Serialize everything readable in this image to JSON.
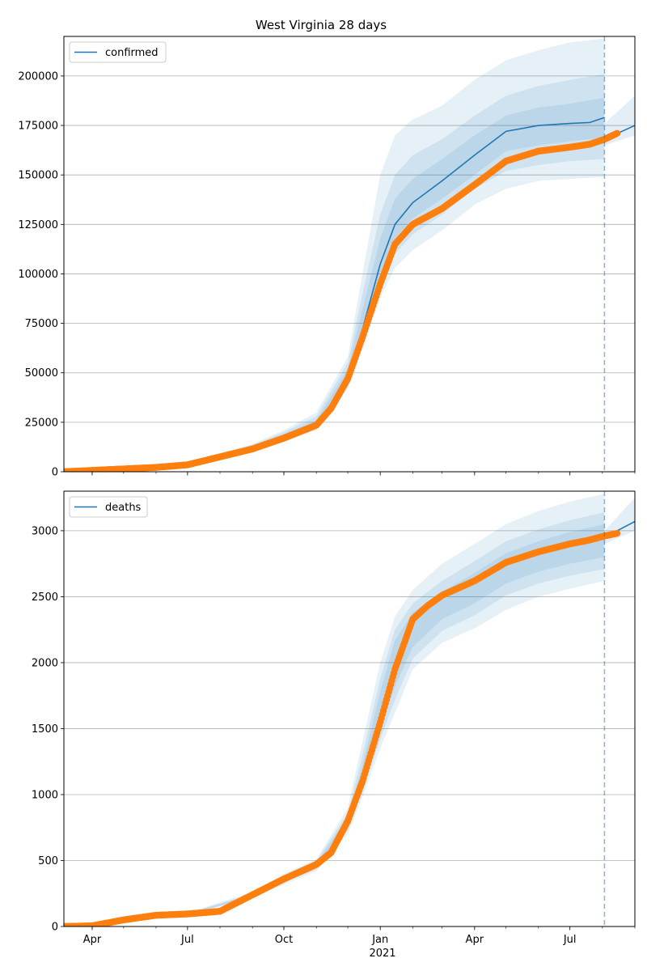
{
  "title": "West Virginia 28 days",
  "colors": {
    "model_line": "#1f77b4",
    "observed": "#ff7f0e",
    "band": "#1f77b4",
    "grid": "#b0b0b0",
    "vline": "#1f77b4"
  },
  "x_axis": {
    "tick_labels": [
      "Apr",
      "Jul",
      "Oct",
      "Jan",
      "Apr",
      "Jul"
    ],
    "year_label": "2021",
    "major_ticks": [
      "2020-04-01",
      "2020-07-01",
      "2020-10-01",
      "2021-01-01",
      "2021-04-01",
      "2021-07-01"
    ],
    "range": [
      "2020-03-05",
      "2021-09-01"
    ],
    "forecast_date": "2021-08-03"
  },
  "chart_data": [
    {
      "type": "line",
      "series_label": "confirmed",
      "legend": "top-left",
      "grid": "y",
      "ylim": [
        0,
        220000
      ],
      "yticks": [
        0,
        25000,
        50000,
        75000,
        100000,
        125000,
        150000,
        175000,
        200000
      ],
      "model": {
        "x": [
          "2020-03-05",
          "2020-06-01",
          "2020-07-01",
          "2020-08-01",
          "2020-09-01",
          "2020-10-01",
          "2020-11-01",
          "2020-11-15",
          "2020-12-01",
          "2020-12-15",
          "2021-01-01",
          "2021-01-15",
          "2021-02-01",
          "2021-03-01",
          "2021-04-01",
          "2021-05-01",
          "2021-06-01",
          "2021-07-01",
          "2021-07-20",
          "2021-08-03"
        ],
        "y": [
          0,
          2500,
          3500,
          8000,
          12000,
          17500,
          24000,
          32000,
          48000,
          72000,
          105000,
          125000,
          136000,
          147000,
          160000,
          172000,
          175000,
          176000,
          176500,
          179000
        ]
      },
      "model_extension": {
        "x": [
          "2021-08-03",
          "2021-09-01"
        ],
        "y": [
          168000,
          175000
        ]
      },
      "observed": {
        "x": [
          "2020-03-05",
          "2020-06-01",
          "2020-07-01",
          "2020-08-01",
          "2020-09-01",
          "2020-10-01",
          "2020-11-01",
          "2020-11-15",
          "2020-12-01",
          "2020-12-15",
          "2021-01-01",
          "2021-01-15",
          "2021-02-01",
          "2021-03-01",
          "2021-04-01",
          "2021-05-01",
          "2021-06-01",
          "2021-07-01",
          "2021-07-20",
          "2021-08-03",
          "2021-08-15"
        ],
        "y": [
          0,
          2200,
          3500,
          7500,
          11500,
          17000,
          23500,
          32000,
          47000,
          68000,
          95000,
          115000,
          125000,
          133000,
          145000,
          157000,
          162000,
          164000,
          165500,
          168000,
          171000
        ]
      },
      "bands": [
        {
          "x": [
            "2020-03-05",
            "2020-07-01",
            "2020-09-01",
            "2020-10-01",
            "2020-11-01",
            "2020-12-01",
            "2020-12-15",
            "2021-01-01",
            "2021-01-15",
            "2021-02-01",
            "2021-03-01",
            "2021-04-01",
            "2021-05-01",
            "2021-06-01",
            "2021-07-01",
            "2021-08-03"
          ],
          "upper": [
            500,
            5000,
            14000,
            21000,
            30000,
            58000,
            100000,
            150000,
            170000,
            178000,
            185000,
            198000,
            208000,
            213000,
            217000,
            219000
          ],
          "lower": [
            0,
            2500,
            10000,
            15000,
            21000,
            42000,
            62000,
            88000,
            103000,
            112000,
            122000,
            135000,
            143000,
            147000,
            148000,
            149000
          ]
        },
        {
          "x": [
            "2020-03-05",
            "2020-07-01",
            "2020-09-01",
            "2020-10-01",
            "2020-11-01",
            "2020-12-01",
            "2020-12-15",
            "2021-01-01",
            "2021-01-15",
            "2021-02-01",
            "2021-03-01",
            "2021-04-01",
            "2021-05-01",
            "2021-06-01",
            "2021-07-01",
            "2021-08-03"
          ],
          "upper": [
            300,
            4500,
            13500,
            20000,
            28000,
            55000,
            90000,
            130000,
            150000,
            160000,
            168000,
            180000,
            190000,
            195000,
            198000,
            201000
          ],
          "lower": [
            0,
            3000,
            10500,
            16000,
            22000,
            44000,
            66000,
            94000,
            110000,
            120000,
            130000,
            143000,
            152000,
            155000,
            157000,
            158000
          ]
        },
        {
          "x": [
            "2020-03-05",
            "2020-07-01",
            "2020-09-01",
            "2020-10-01",
            "2020-11-01",
            "2020-12-01",
            "2020-12-15",
            "2021-01-01",
            "2021-01-15",
            "2021-02-01",
            "2021-03-01",
            "2021-04-01",
            "2021-05-01",
            "2021-06-01",
            "2021-07-01",
            "2021-08-03"
          ],
          "upper": [
            150,
            4000,
            13000,
            19000,
            26000,
            52000,
            82000,
            118000,
            138000,
            148000,
            158000,
            170000,
            180000,
            184000,
            186000,
            189000
          ],
          "lower": [
            0,
            3200,
            11000,
            16500,
            22500,
            46000,
            70000,
            100000,
            118000,
            128000,
            138000,
            150000,
            162000,
            165000,
            167000,
            169000
          ]
        }
      ],
      "extension_band": {
        "x": [
          "2021-08-03",
          "2021-09-01"
        ],
        "upper": [
          176000,
          190000
        ],
        "lower": [
          165000,
          170000
        ]
      }
    },
    {
      "type": "line",
      "series_label": "deaths",
      "legend": "top-left",
      "grid": "y",
      "ylim": [
        0,
        3300
      ],
      "yticks": [
        0,
        500,
        1000,
        1500,
        2000,
        2500,
        3000
      ],
      "model": {
        "x": [
          "2020-08-03",
          "2021-08-03"
        ],
        "y": [
          null,
          null
        ]
      },
      "model_extension": {
        "x": [
          "2021-08-03",
          "2021-09-01"
        ],
        "y": [
          2950,
          3070
        ]
      },
      "observed": {
        "x": [
          "2020-03-05",
          "2020-04-01",
          "2020-05-01",
          "2020-06-01",
          "2020-07-01",
          "2020-08-01",
          "2020-09-01",
          "2020-10-01",
          "2020-11-01",
          "2020-11-15",
          "2020-12-01",
          "2020-12-15",
          "2021-01-01",
          "2021-01-15",
          "2021-02-01",
          "2021-02-15",
          "2021-03-01",
          "2021-04-01",
          "2021-05-01",
          "2021-06-01",
          "2021-07-01",
          "2021-07-20",
          "2021-08-03",
          "2021-08-15"
        ],
        "y": [
          0,
          5,
          50,
          85,
          95,
          115,
          240,
          360,
          470,
          560,
          800,
          1100,
          1550,
          1950,
          2330,
          2430,
          2510,
          2620,
          2760,
          2840,
          2900,
          2930,
          2960,
          2980
        ]
      },
      "bands": [
        {
          "x": [
            "2020-03-05",
            "2020-07-01",
            "2020-09-01",
            "2020-10-01",
            "2020-11-01",
            "2020-12-01",
            "2020-12-15",
            "2021-01-01",
            "2021-01-15",
            "2021-02-01",
            "2021-03-01",
            "2021-04-01",
            "2021-05-01",
            "2021-06-01",
            "2021-07-01",
            "2021-08-03"
          ],
          "upper": [
            10,
            105,
            260,
            400,
            510,
            900,
            1400,
            2000,
            2350,
            2550,
            2750,
            2900,
            3050,
            3150,
            3220,
            3280
          ],
          "lower": [
            0,
            85,
            215,
            320,
            420,
            700,
            980,
            1350,
            1620,
            1950,
            2150,
            2260,
            2400,
            2500,
            2560,
            2620
          ]
        },
        {
          "x": [
            "2020-03-05",
            "2020-07-01",
            "2020-09-01",
            "2020-10-01",
            "2020-11-01",
            "2020-12-01",
            "2020-12-15",
            "2021-01-01",
            "2021-01-15",
            "2021-02-01",
            "2021-03-01",
            "2021-04-01",
            "2021-05-01",
            "2021-06-01",
            "2021-07-01",
            "2021-08-03"
          ],
          "upper": [
            8,
            100,
            250,
            385,
            495,
            860,
            1300,
            1880,
            2250,
            2450,
            2620,
            2770,
            2920,
            3010,
            3080,
            3140
          ],
          "lower": [
            0,
            88,
            222,
            335,
            435,
            730,
            1030,
            1420,
            1720,
            2030,
            2240,
            2360,
            2510,
            2600,
            2660,
            2710
          ]
        },
        {
          "x": [
            "2020-03-05",
            "2020-07-01",
            "2020-09-01",
            "2020-10-01",
            "2020-11-01",
            "2020-12-01",
            "2020-12-15",
            "2021-01-01",
            "2021-01-15",
            "2021-02-01",
            "2021-03-01",
            "2021-04-01",
            "2021-05-01",
            "2021-06-01",
            "2021-07-01",
            "2021-08-03"
          ],
          "upper": [
            6,
            97,
            243,
            370,
            480,
            830,
            1220,
            1780,
            2170,
            2380,
            2540,
            2680,
            2830,
            2920,
            2990,
            3050
          ],
          "lower": [
            0,
            90,
            228,
            348,
            450,
            760,
            1090,
            1500,
            1820,
            2120,
            2330,
            2450,
            2600,
            2690,
            2750,
            2800
          ]
        }
      ],
      "extension_band": {
        "x": [
          "2021-08-03",
          "2021-09-01"
        ],
        "upper": [
          3000,
          3250
        ],
        "lower": [
          2900,
          3000
        ]
      }
    }
  ]
}
